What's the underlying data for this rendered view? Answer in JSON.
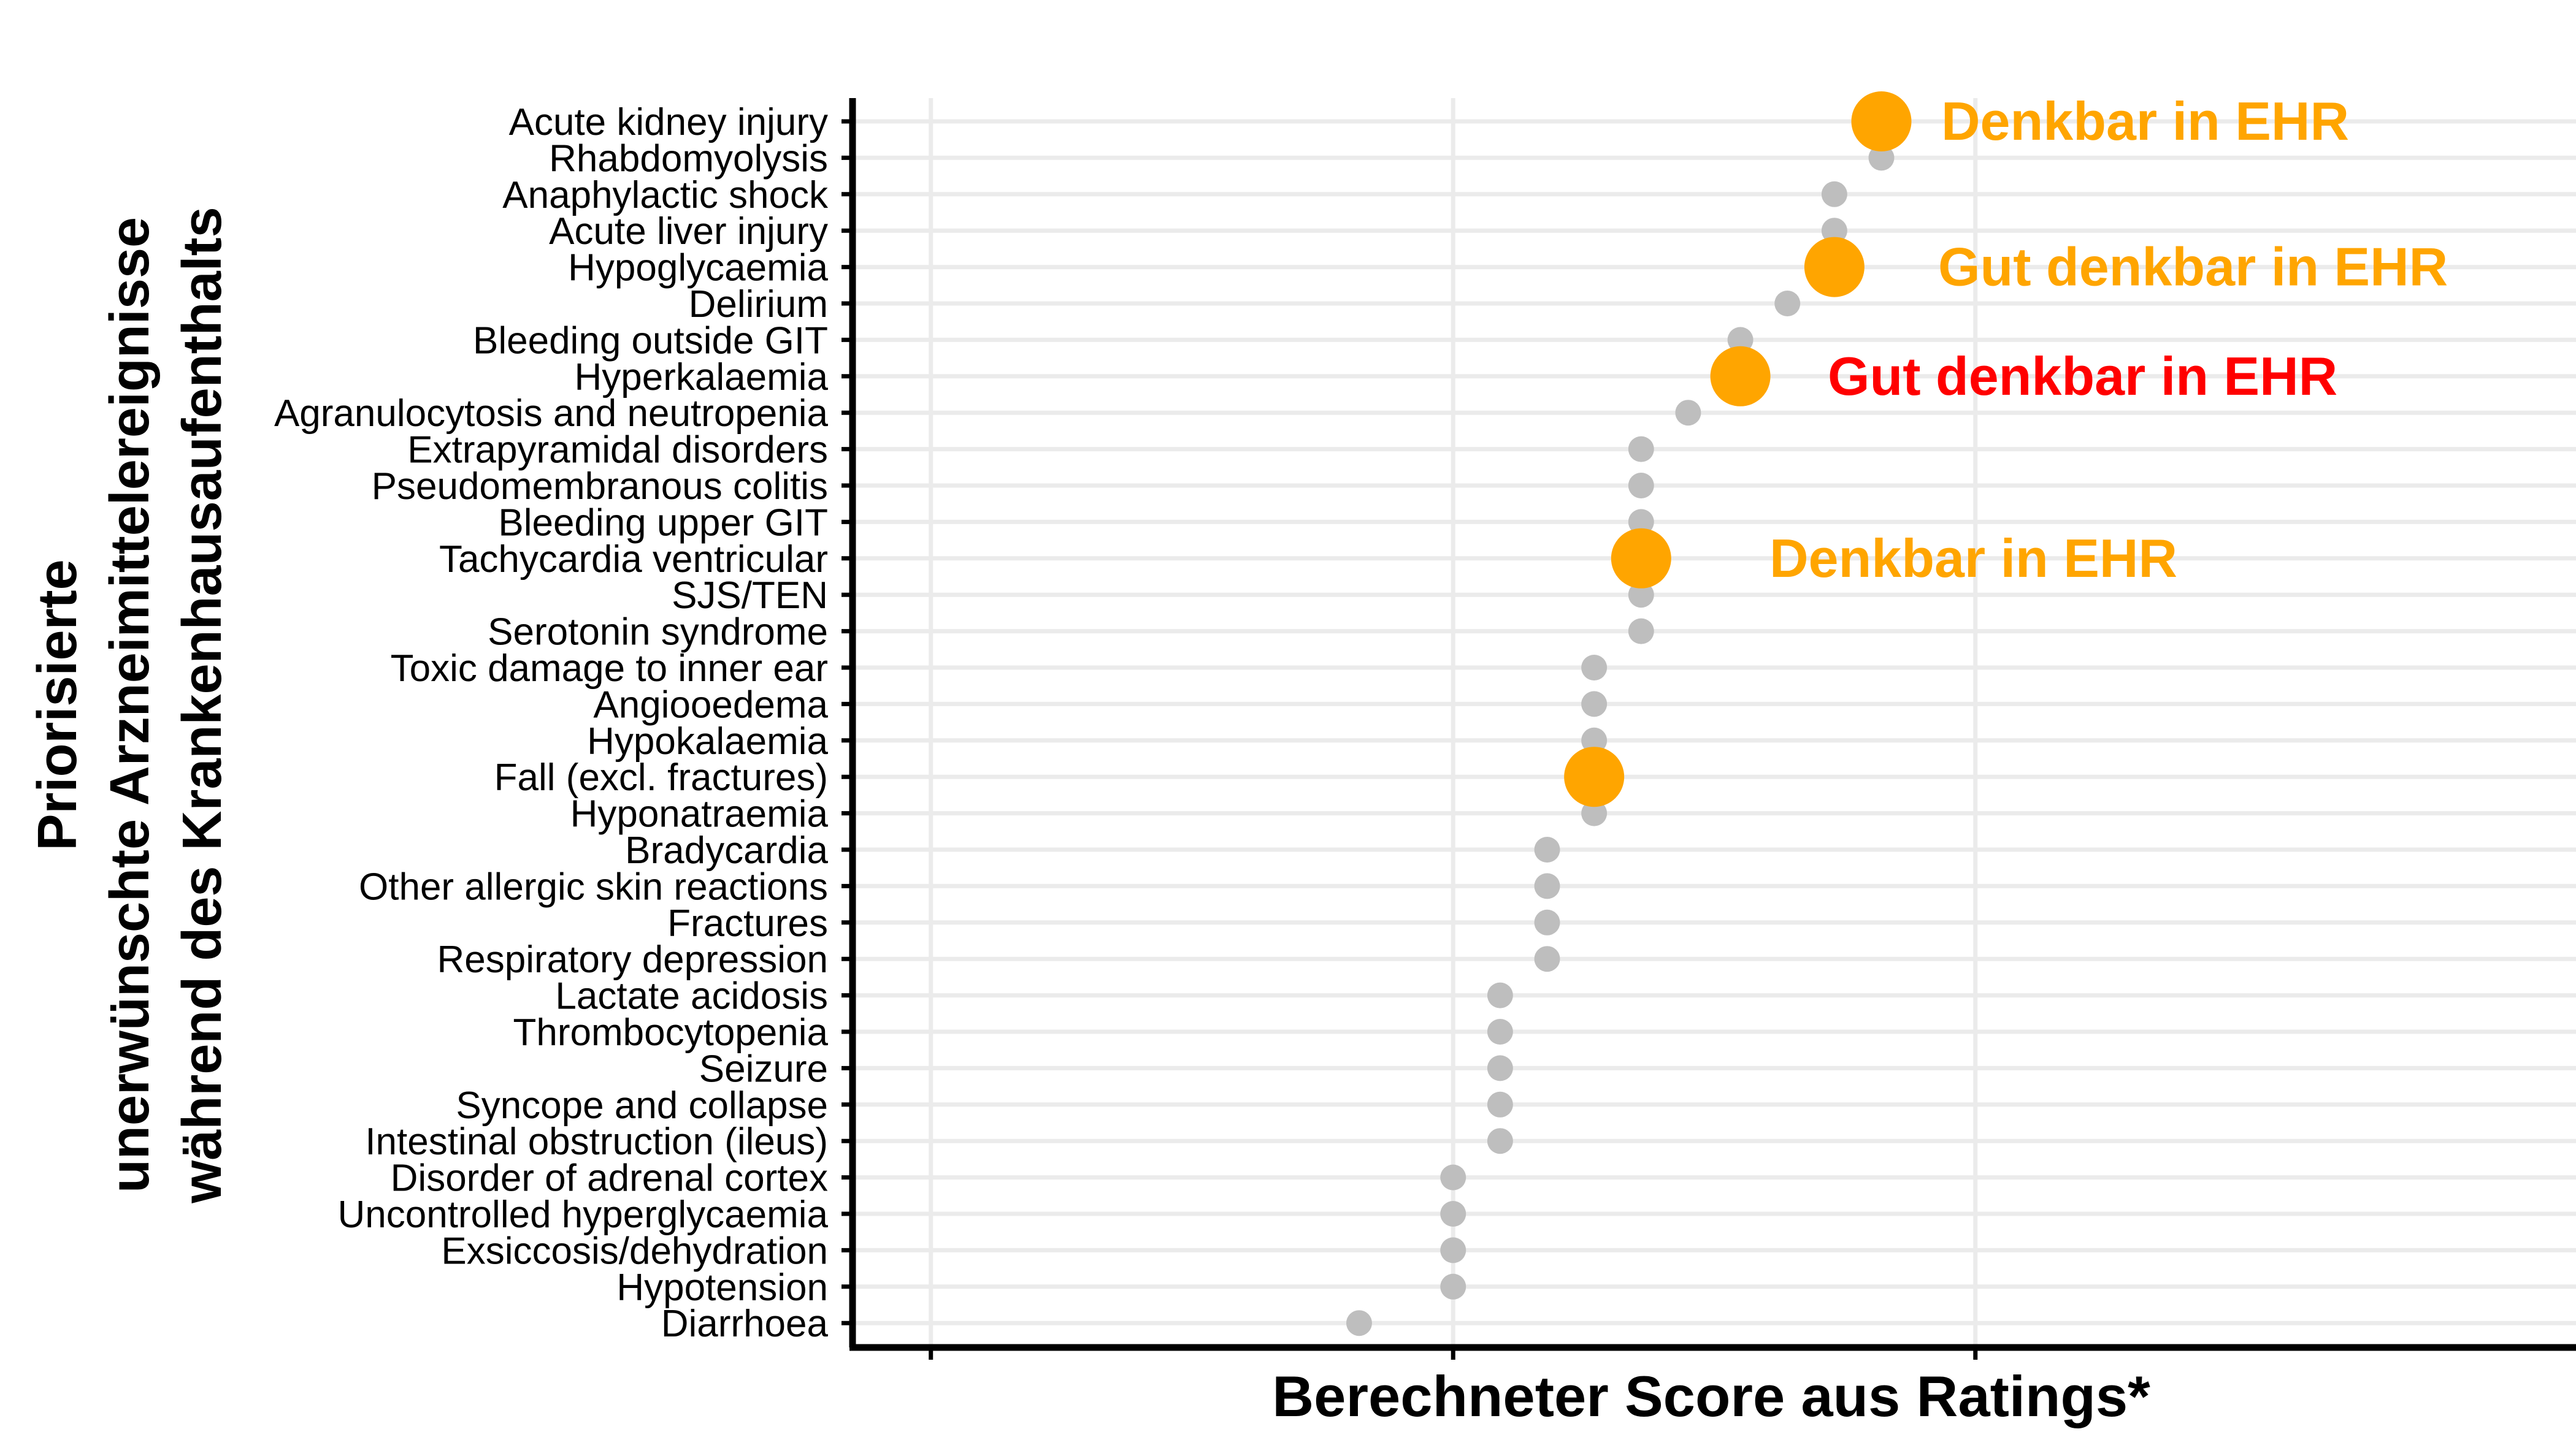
{
  "chart_data": {
    "type": "scatter",
    "title": "",
    "xlabel": "Berechneter Score aus Ratings*",
    "ylabel": [
      "Priorisierte",
      "unerwünschte Arzneimittelereignisse",
      "während des Krankenhausaufenthalts"
    ],
    "x_tick_labels": [
      "",
      "",
      ""
    ],
    "grid": true,
    "colors": {
      "point": "#BEBEBE",
      "highlight": "#FFA500",
      "label_orange": "#FFA500",
      "label_red": "#FF0000",
      "grid": "#EBEBEB",
      "axis": "#000000"
    },
    "categories": [
      "Acute kidney injury",
      "Rhabdomyolysis",
      "Anaphylactic shock",
      "Acute liver injury",
      "Hypoglycaemia",
      "Delirium",
      "Bleeding outside GIT",
      "Hyperkalaemia",
      "Agranulocytosis and neutropenia",
      "Extrapyramidal disorders",
      "Pseudomembranous colitis",
      "Bleeding upper GIT",
      "Tachycardia ventricular",
      "SJS/TEN",
      "Serotonin syndrome",
      "Toxic damage to inner ear",
      "Angiooedema",
      "Hypokalaemia",
      "Fall (excl. fractures)",
      "Hyponatraemia",
      "Bradycardia",
      "Other allergic skin reactions",
      "Fractures",
      "Respiratory depression",
      "Lactate acidosis",
      "Thrombocytopenia",
      "Seizure",
      "Syncope and collapse",
      "Intestinal obstruction (ileus)",
      "Disorder of adrenal cortex",
      "Uncontrolled hyperglycaemia",
      "Exsiccosis/dehydration",
      "Hypotension",
      "Diarrhoea"
    ],
    "values": [
      2.82,
      2.82,
      2.73,
      2.73,
      2.73,
      2.64,
      2.55,
      2.55,
      2.45,
      2.36,
      2.36,
      2.36,
      2.36,
      2.36,
      2.36,
      2.27,
      2.27,
      2.27,
      2.27,
      2.27,
      2.18,
      2.18,
      2.18,
      2.18,
      2.09,
      2.09,
      2.09,
      2.09,
      2.09,
      2.0,
      2.0,
      2.0,
      2.0,
      1.82
    ],
    "xlim": [
      0.85,
      4.15
    ],
    "highlights": [
      {
        "category": "Acute kidney injury",
        "label": "Denkbar in EHR",
        "color": "#FFA500"
      },
      {
        "category": "Hypoglycaemia",
        "label": "Gut denkbar in EHR",
        "color": "#FFA500"
      },
      {
        "category": "Hyperkalaemia",
        "label": "Gut denkbar in EHR",
        "color": "#FF0000"
      },
      {
        "category": "Tachycardia ventricular",
        "label": "Denkbar in EHR",
        "color": "#FFA500"
      },
      {
        "category": "Fall (excl. fractures)",
        "label": "",
        "color": "#FFA500"
      }
    ]
  }
}
